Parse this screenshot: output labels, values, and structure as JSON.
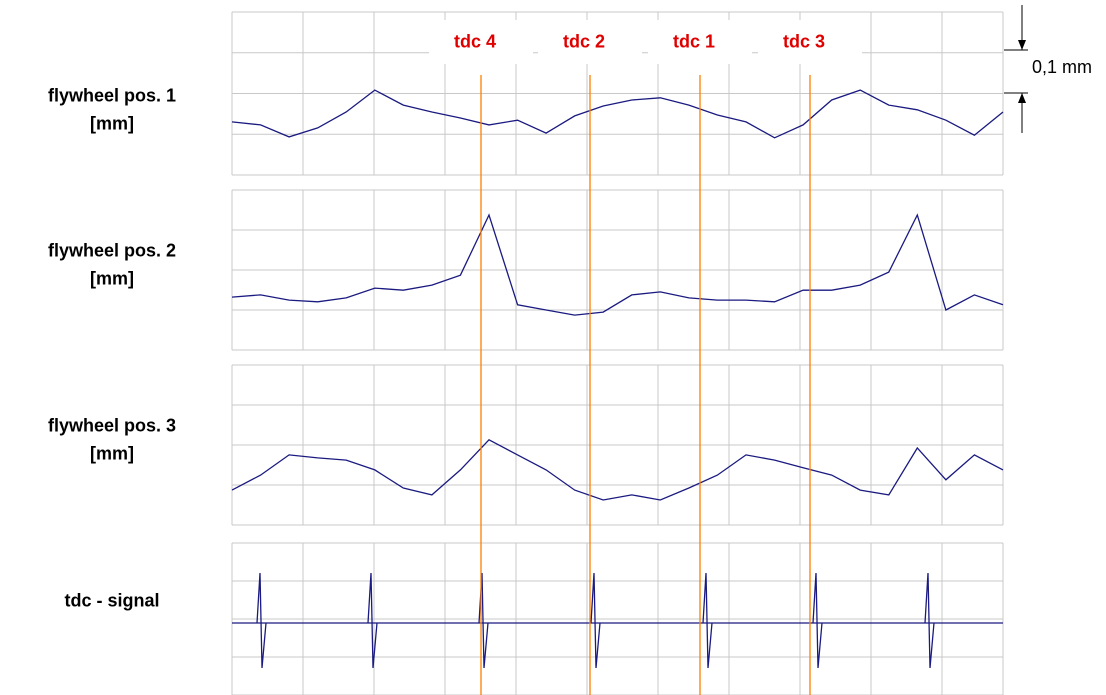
{
  "chart_data": {
    "type": "line",
    "series_color": "#1a1a80",
    "marker_color": "#ff8000",
    "marker_label_color": "#e00000",
    "grid": true,
    "markers": [
      "tdc 4",
      "tdc 2",
      "tdc 1",
      "tdc 3"
    ],
    "scale_value": 0.1,
    "scale_label": "0,1 mm",
    "series": [
      {
        "name": "flywheel pos. 1",
        "unit": "[mm]",
        "values": [
          -0.016,
          -0.023,
          -0.051,
          -0.03,
          0.007,
          0.058,
          0.023,
          0.007,
          -0.007,
          -0.023,
          -0.012,
          -0.042,
          -0.002,
          0.021,
          0.035,
          0.04,
          0.023,
          0,
          -0.016,
          -0.053,
          -0.023,
          0.035,
          0.058,
          0.023,
          0.012,
          -0.012,
          -0.047,
          0.007
        ]
      },
      {
        "name": "flywheel pos. 2",
        "unit": "[mm]",
        "values": [
          -0.063,
          -0.058,
          -0.07,
          -0.074,
          -0.065,
          -0.042,
          -0.047,
          -0.035,
          -0.012,
          0.128,
          -0.081,
          -0.093,
          -0.105,
          -0.098,
          -0.058,
          -0.051,
          -0.065,
          -0.07,
          -0.07,
          -0.074,
          -0.047,
          -0.047,
          -0.035,
          -0.005,
          0.128,
          -0.093,
          -0.058,
          -0.081
        ]
      },
      {
        "name": "flywheel pos. 3",
        "unit": "[mm]",
        "values": [
          -0.105,
          -0.07,
          -0.023,
          -0.03,
          -0.035,
          -0.058,
          -0.1,
          -0.116,
          -0.058,
          0.012,
          -0.023,
          -0.058,
          -0.105,
          -0.128,
          -0.116,
          -0.128,
          -0.1,
          -0.07,
          -0.023,
          -0.035,
          -0.053,
          -0.07,
          -0.105,
          -0.116,
          -0.007,
          -0.081,
          -0.023,
          -0.058
        ]
      }
    ],
    "signal_label": "tdc - signal"
  }
}
